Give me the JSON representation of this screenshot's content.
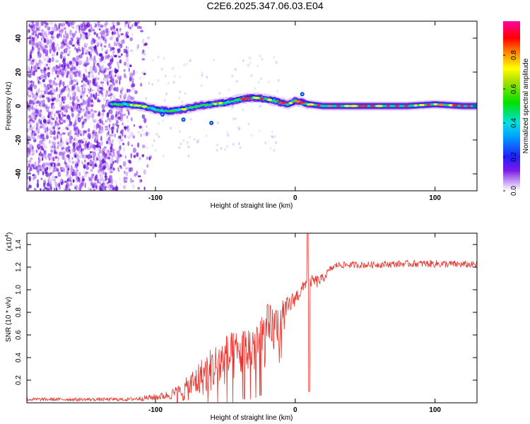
{
  "title": "C2E6.2025.347.06.03.E04",
  "colors": {
    "snr_line": "#e8312a",
    "background_speckle": "#7b1fe0"
  },
  "chart_data": [
    {
      "type": "heatmap",
      "name": "spectrogram",
      "xlabel": "Height of straight line (km)",
      "ylabel": "Frequency (Hz)",
      "xlim": [
        -192,
        130
      ],
      "ylim": [
        -50,
        50
      ],
      "x_ticks": [
        -100,
        0,
        100
      ],
      "y_ticks": [
        -40,
        -20,
        0,
        20,
        40
      ],
      "colorbar": {
        "label": "Normalized spectral amplitude",
        "range": [
          0,
          1
        ],
        "ticks": [
          0.0,
          0.2,
          0.4,
          0.6,
          0.8
        ],
        "colormap": "rainbow (violet-blue-cyan-green-yellow-red-magenta)"
      },
      "ridge": {
        "description": "dominant frequency ridge",
        "x_start": -132,
        "x": [
          -132,
          -120,
          -110,
          -100,
          -90,
          -80,
          -70,
          -60,
          -50,
          -40,
          -30,
          -20,
          -10,
          -5,
          0,
          5,
          10,
          20,
          40,
          60,
          80,
          100,
          120,
          130
        ],
        "y": [
          1,
          1,
          0,
          -2,
          -3,
          -2,
          0,
          1,
          2,
          4,
          5,
          4,
          2,
          1,
          3,
          2,
          1,
          0,
          0,
          0,
          0,
          1,
          0,
          0
        ]
      },
      "noise_region": {
        "x_from": -192,
        "x_to": -110
      }
    },
    {
      "type": "line",
      "name": "snr",
      "xlabel": "Height of straight line (km)",
      "ylabel": "SNR (10 * v/v)",
      "y_scale_label": "(x10",
      "y_scale_exponent": "4",
      "xlim": [
        -192,
        130
      ],
      "ylim": [
        0,
        15000
      ],
      "x_ticks": [
        -100,
        0,
        100
      ],
      "y_ticks": [
        2000,
        4000,
        6000,
        8000,
        10000,
        12000,
        14000
      ],
      "y_tick_labels": [
        "0.2",
        "0.4",
        "0.6",
        "0.8",
        "1.0",
        "1.2",
        "1.4"
      ],
      "x_tick_labels": [
        "-100",
        "0",
        "100"
      ],
      "profile": {
        "x": [
          -192,
          -120,
          -100,
          -90,
          -80,
          -70,
          -60,
          -50,
          -40,
          -30,
          -20,
          -10,
          -5,
          0,
          5,
          8,
          10,
          12,
          15,
          20,
          25,
          30,
          50,
          80,
          100,
          130
        ],
        "base": [
          300,
          300,
          500,
          700,
          1000,
          2000,
          3000,
          3800,
          4300,
          5000,
          6000,
          7200,
          8500,
          9300,
          10000,
          10800,
          10500,
          10800,
          10700,
          11000,
          11800,
          12200,
          12200,
          12300,
          12300,
          12200
        ],
        "noise": [
          150,
          150,
          300,
          400,
          900,
          1600,
          2000,
          2300,
          2200,
          2600,
          2800,
          1800,
          1000,
          700,
          600,
          500,
          400,
          500,
          600,
          400,
          300,
          300,
          300,
          300,
          350,
          300
        ]
      },
      "peak": {
        "x": 9,
        "y": 15000
      },
      "dip": {
        "x": 10,
        "y": 1000
      }
    }
  ]
}
